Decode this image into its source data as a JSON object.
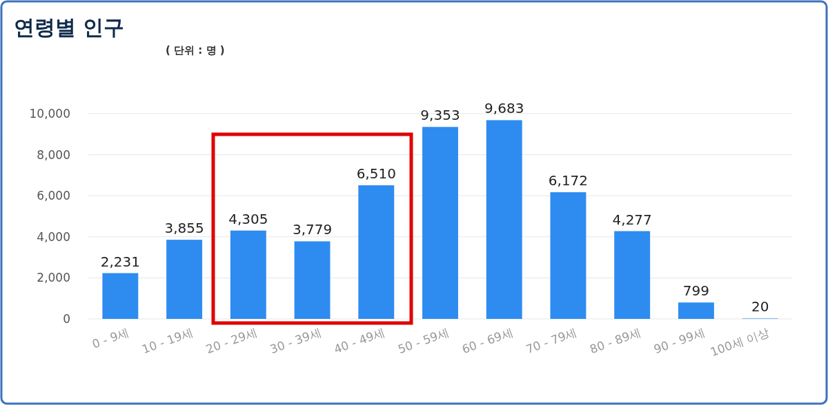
{
  "chart_data": {
    "type": "bar",
    "title": "연령별 인구",
    "subtitle": "( 단위 : 명 )",
    "categories": [
      "0 - 9세",
      "10 - 19세",
      "20 - 29세",
      "30 - 39세",
      "40 - 49세",
      "50 - 59세",
      "60 - 69세",
      "70 - 79세",
      "80 - 89세",
      "90 - 99세",
      "100세 이상"
    ],
    "values": [
      2231,
      3855,
      4305,
      3779,
      6510,
      9353,
      9683,
      6172,
      4277,
      799,
      20
    ],
    "value_labels": [
      "2,231",
      "3,855",
      "4,305",
      "3,779",
      "6,510",
      "9,353",
      "9,683",
      "6,172",
      "4,277",
      "799",
      "20"
    ],
    "color": "#2e8cf0",
    "ylim": [
      0,
      10000
    ],
    "yticks": [
      {
        "value": 0,
        "label": "0"
      },
      {
        "value": 2000,
        "label": "2,000"
      },
      {
        "value": 4000,
        "label": "4,000"
      },
      {
        "value": 6000,
        "label": "6,000"
      },
      {
        "value": 8000,
        "label": "8,000"
      },
      {
        "value": 10000,
        "label": "10,000"
      }
    ],
    "grid": "y"
  }
}
